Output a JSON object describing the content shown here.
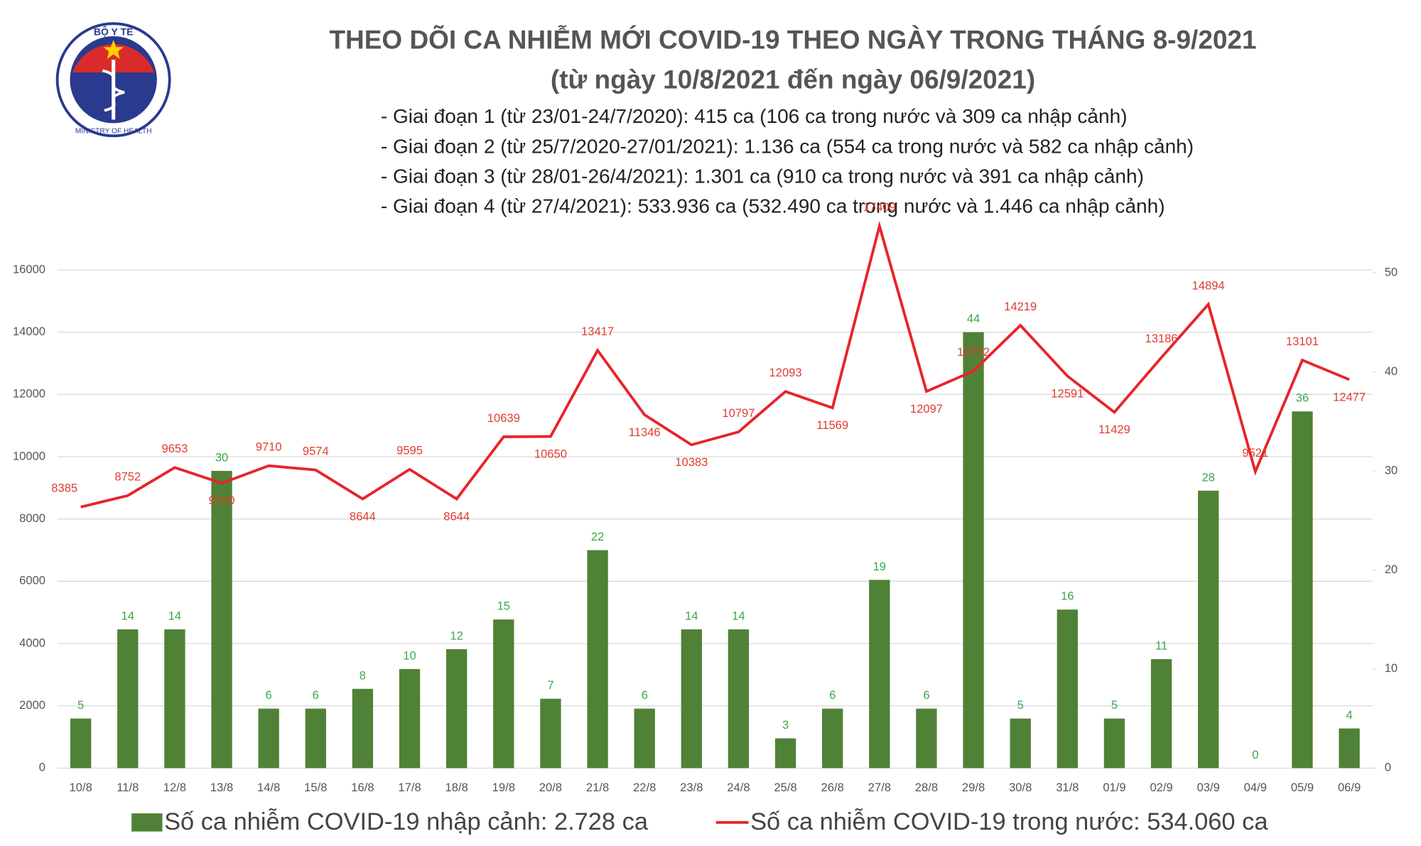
{
  "chart_data": {
    "type": "bar-line",
    "title": "THEO DÕI CA NHIỄM MỚI COVID-19 THEO NGÀY TRONG THÁNG 8-9/2021",
    "subtitle": "(từ ngày 10/8/2021 đến ngày 06/9/2021)",
    "notes": [
      "- Giai đoạn 1 (từ 23/01-24/7/2020): 415 ca (106 ca trong nước và 309 ca nhập cảnh)",
      "- Giai đoạn 2 (từ 25/7/2020-27/01/2021): 1.136 ca (554 ca trong nước và 582 ca nhập cảnh)",
      "- Giai đoạn 3 (từ 28/01-26/4/2021): 1.301 ca (910 ca trong nước và 391 ca nhập cảnh)",
      "- Giai đoạn 4 (từ 27/4/2021): 533.936 ca (532.490 ca trong nước và 1.446 ca nhập cảnh)"
    ],
    "logo": {
      "top": "BỘ Y TẾ",
      "bottom": "MINISTRY OF HEALTH"
    },
    "categories": [
      "10/8",
      "11/8",
      "12/8",
      "13/8",
      "14/8",
      "15/8",
      "16/8",
      "17/8",
      "18/8",
      "19/8",
      "20/8",
      "21/8",
      "22/8",
      "23/8",
      "24/8",
      "25/8",
      "26/8",
      "27/8",
      "28/8",
      "29/8",
      "30/8",
      "31/8",
      "01/9",
      "02/9",
      "03/9",
      "04/9",
      "05/9",
      "06/9"
    ],
    "series": [
      {
        "name": "Số ca nhiễm COVID-19 nhập cảnh: 2.728 ca",
        "type": "bar",
        "axis": "y2",
        "color": "#4f8236",
        "label_color": "#3aa84a",
        "values": [
          5,
          14,
          14,
          30,
          6,
          6,
          8,
          10,
          12,
          15,
          7,
          22,
          6,
          14,
          14,
          3,
          6,
          19,
          6,
          44,
          5,
          16,
          5,
          11,
          28,
          0,
          36,
          4
        ]
      },
      {
        "name": "Số ca nhiễm COVID-19 trong nước: 534.060 ca",
        "type": "line",
        "color": "#e8242a",
        "label_color": "#e03c31",
        "values": [
          8385,
          8752,
          9653,
          9150,
          9710,
          9574,
          8644,
          9595,
          8644,
          10639,
          10650,
          13417,
          11346,
          10383,
          10797,
          12093,
          11569,
          17409,
          12097,
          12752,
          14219,
          12591,
          11429,
          13186,
          14894,
          9521,
          13101,
          12477
        ]
      }
    ],
    "ylim": [
      0,
      17500
    ],
    "yticks": [
      0,
      2000,
      4000,
      6000,
      8000,
      10000,
      12000,
      14000,
      16000
    ],
    "y2lim": [
      0,
      55
    ],
    "y2ticks": [
      0,
      10,
      20,
      30,
      40,
      50
    ]
  }
}
